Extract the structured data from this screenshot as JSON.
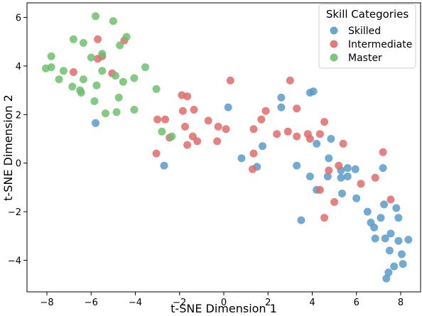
{
  "chart_data": {
    "type": "scatter",
    "xlabel": "t-SNE Dimension 1",
    "ylabel": "t-SNE Dimension 2",
    "xlim": [
      -8.9,
      8.9
    ],
    "ylim": [
      -5.3,
      6.6
    ],
    "xticks": [
      -8,
      -6,
      -4,
      -2,
      0,
      2,
      4,
      6,
      8
    ],
    "yticks": [
      -4,
      -2,
      0,
      2,
      4,
      6
    ],
    "tick_labels_x": [
      "−8",
      "−6",
      "−4",
      "−2",
      "0",
      "2",
      "4",
      "6",
      "8"
    ],
    "tick_labels_y": [
      "−4",
      "−2",
      "0",
      "2",
      "4",
      "6"
    ],
    "grid": false,
    "legend": {
      "title": "Skill Categories",
      "placement": "top-right"
    },
    "series": [
      {
        "name": "Skilled",
        "color": "#5b9bc9",
        "points": [
          [
            -5.8,
            1.65
          ],
          [
            -2.7,
            -0.1
          ],
          [
            0.2,
            2.3
          ],
          [
            0.8,
            0.2
          ],
          [
            1.5,
            -0.15
          ],
          [
            1.75,
            0.7
          ],
          [
            2.6,
            2.7
          ],
          [
            2.6,
            2.3
          ],
          [
            3.3,
            -0.1
          ],
          [
            3.5,
            -2.35
          ],
          [
            3.9,
            2.9
          ],
          [
            4.05,
            2.95
          ],
          [
            3.9,
            -0.55
          ],
          [
            4.2,
            0.8
          ],
          [
            4.2,
            -1.1
          ],
          [
            4.75,
            0.2
          ],
          [
            4.85,
            1.0
          ],
          [
            4.7,
            -0.55
          ],
          [
            5.3,
            -0.3
          ],
          [
            5.35,
            -1.25
          ],
          [
            5.6,
            -0.55
          ],
          [
            5.6,
            -0.2
          ],
          [
            5.3,
            -0.6
          ],
          [
            5.95,
            -0.25
          ],
          [
            6.0,
            -1.45
          ],
          [
            6.5,
            -2.0
          ],
          [
            6.65,
            -2.45
          ],
          [
            6.8,
            -2.65
          ],
          [
            6.85,
            -3.1
          ],
          [
            7.1,
            -2.25
          ],
          [
            7.25,
            -1.7
          ],
          [
            7.3,
            -3.1
          ],
          [
            7.35,
            -4.75
          ],
          [
            7.45,
            -4.5
          ],
          [
            7.5,
            -3.6
          ],
          [
            7.55,
            -2.9
          ],
          [
            7.7,
            -4.25
          ],
          [
            7.8,
            -1.85
          ],
          [
            7.9,
            -2.25
          ],
          [
            7.9,
            -3.2
          ],
          [
            8.05,
            -3.75
          ],
          [
            8.1,
            -4.15
          ],
          [
            8.35,
            -3.15
          ],
          [
            7.2,
            -0.2
          ]
        ]
      },
      {
        "name": "Intermediate",
        "color": "#e06b6b",
        "points": [
          [
            -6.8,
            3.75
          ],
          [
            -5.7,
            5.1
          ],
          [
            -5.7,
            4.3
          ],
          [
            -5.5,
            4.4
          ],
          [
            -5.05,
            3.7
          ],
          [
            -4.5,
            5.05
          ],
          [
            -3.05,
            0.4
          ],
          [
            -3.0,
            1.8
          ],
          [
            -2.65,
            1.8
          ],
          [
            -2.45,
            1.05
          ],
          [
            -1.9,
            2.8
          ],
          [
            -1.65,
            2.75
          ],
          [
            -1.85,
            2.15
          ],
          [
            -1.35,
            2.2
          ],
          [
            -1.75,
            1.5
          ],
          [
            -1.4,
            1.1
          ],
          [
            -1.65,
            0.75
          ],
          [
            -1.2,
            0.9
          ],
          [
            -0.7,
            1.75
          ],
          [
            -0.3,
            0.9
          ],
          [
            -0.25,
            1.5
          ],
          [
            0.1,
            1.4
          ],
          [
            0.3,
            3.4
          ],
          [
            1.35,
            1.4
          ],
          [
            1.35,
            0.4
          ],
          [
            1.3,
            -0.25
          ],
          [
            1.7,
            1.8
          ],
          [
            1.9,
            2.15
          ],
          [
            2.4,
            1.2
          ],
          [
            2.9,
            1.3
          ],
          [
            3.0,
            3.4
          ],
          [
            3.3,
            2.25
          ],
          [
            3.3,
            1.1
          ],
          [
            3.8,
            1.2
          ],
          [
            3.9,
            1.0
          ],
          [
            4.35,
            1.2
          ],
          [
            4.55,
            1.7
          ],
          [
            4.35,
            -1.1
          ],
          [
            4.55,
            -2.25
          ],
          [
            4.75,
            -0.3
          ],
          [
            5.0,
            -1.6
          ],
          [
            5.2,
            -0.1
          ],
          [
            5.4,
            0.8
          ],
          [
            6.2,
            -0.85
          ],
          [
            6.85,
            -0.6
          ],
          [
            7.2,
            0.45
          ],
          [
            7.55,
            -1.5
          ]
        ]
      },
      {
        "name": "Master",
        "color": "#6fbf6f",
        "points": [
          [
            -8.05,
            3.9
          ],
          [
            -7.8,
            4.4
          ],
          [
            -7.8,
            3.95
          ],
          [
            -7.45,
            3.45
          ],
          [
            -7.25,
            3.8
          ],
          [
            -6.8,
            5.1
          ],
          [
            -6.85,
            3.15
          ],
          [
            -6.5,
            3.0
          ],
          [
            -6.45,
            2.9
          ],
          [
            -6.35,
            4.95
          ],
          [
            -6.35,
            3.45
          ],
          [
            -6.0,
            4.35
          ],
          [
            -5.8,
            6.05
          ],
          [
            -5.75,
            3.2
          ],
          [
            -5.85,
            2.55
          ],
          [
            -5.5,
            4.5
          ],
          [
            -5.5,
            3.8
          ],
          [
            -5.35,
            2.05
          ],
          [
            -5.0,
            5.85
          ],
          [
            -4.9,
            3.6
          ],
          [
            -4.85,
            2.1
          ],
          [
            -4.75,
            2.7
          ],
          [
            -4.7,
            4.85
          ],
          [
            -4.55,
            3.35
          ],
          [
            -4.4,
            5.2
          ],
          [
            -4.05,
            3.5
          ],
          [
            -4.05,
            2.2
          ],
          [
            -3.55,
            3.95
          ],
          [
            -3.05,
            3.05
          ],
          [
            -2.8,
            1.3
          ],
          [
            -2.35,
            1.1
          ]
        ]
      }
    ]
  }
}
